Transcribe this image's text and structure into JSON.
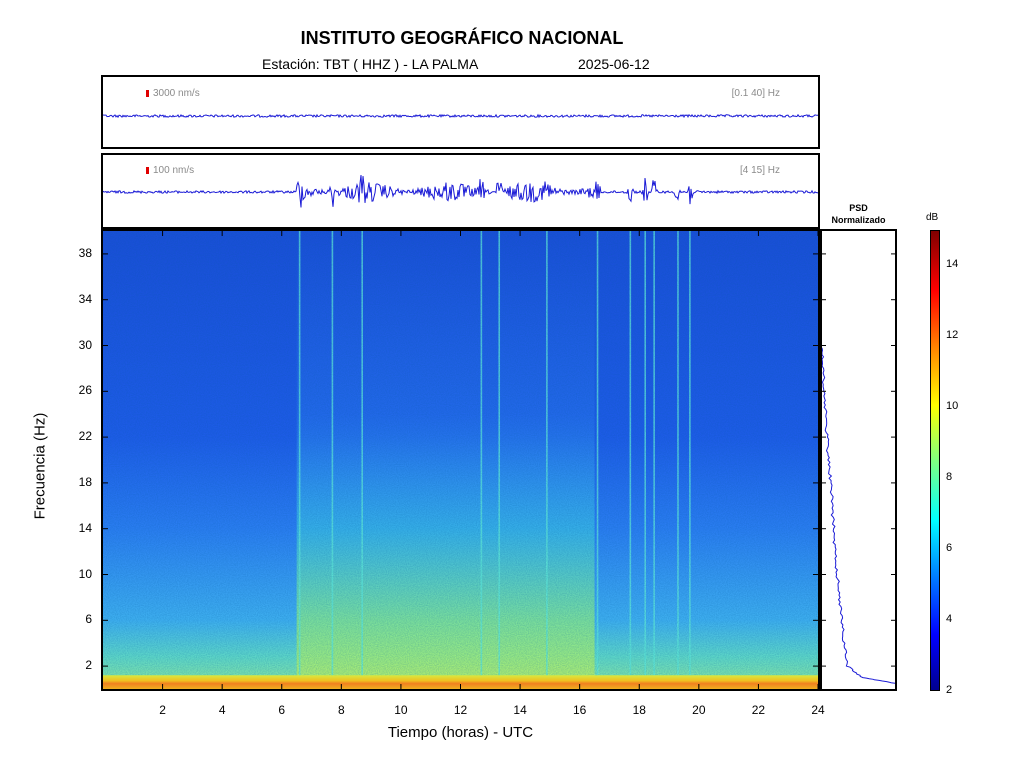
{
  "header": {
    "title": "INSTITUTO GEOGRÁFICO NACIONAL",
    "subtitle": "Estación:  TBT ( HHZ ) - LA PALMA",
    "date": "2025-06-12"
  },
  "waveforms": [
    {
      "amplitude_scale": "3000 nm/s",
      "filter_band": "[0.1 40] Hz"
    },
    {
      "amplitude_scale": "100 nm/s",
      "filter_band": "[4 15] Hz"
    }
  ],
  "psd": {
    "title_line1": "PSD",
    "title_line2": "Normalizado"
  },
  "colorbar": {
    "unit": "dB",
    "ticks": [
      "2",
      "4",
      "6",
      "8",
      "10",
      "12",
      "14"
    ],
    "range": [
      2,
      15
    ]
  },
  "chart_data": {
    "type": "heatmap",
    "xlabel": "Tiempo (horas) - UTC",
    "ylabel": "Frecuencia  (Hz)",
    "xlim": [
      0,
      24
    ],
    "ylim": [
      0,
      40
    ],
    "x_ticks": [
      "2",
      "4",
      "6",
      "8",
      "10",
      "12",
      "14",
      "16",
      "18",
      "20",
      "22",
      "24"
    ],
    "y_ticks": [
      "2",
      "6",
      "10",
      "14",
      "18",
      "22",
      "26",
      "30",
      "34",
      "38"
    ],
    "activity_window_hours": [
      6.5,
      16.5
    ],
    "transient_event_hours": [
      6.6,
      7.7,
      8.7,
      12.7,
      13.3,
      14.9,
      16.6,
      17.7,
      18.2,
      18.5,
      19.3,
      19.7
    ],
    "psd_profile": {
      "frequency_hz": [
        0.5,
        1,
        2,
        4,
        6,
        8,
        10,
        12,
        14,
        16,
        18,
        20,
        22,
        24,
        26,
        28,
        30
      ],
      "normalized_psd": [
        1.0,
        0.55,
        0.35,
        0.3,
        0.27,
        0.24,
        0.21,
        0.18,
        0.16,
        0.14,
        0.12,
        0.09,
        0.07,
        0.05,
        0.03,
        0.01,
        0.0
      ]
    }
  }
}
